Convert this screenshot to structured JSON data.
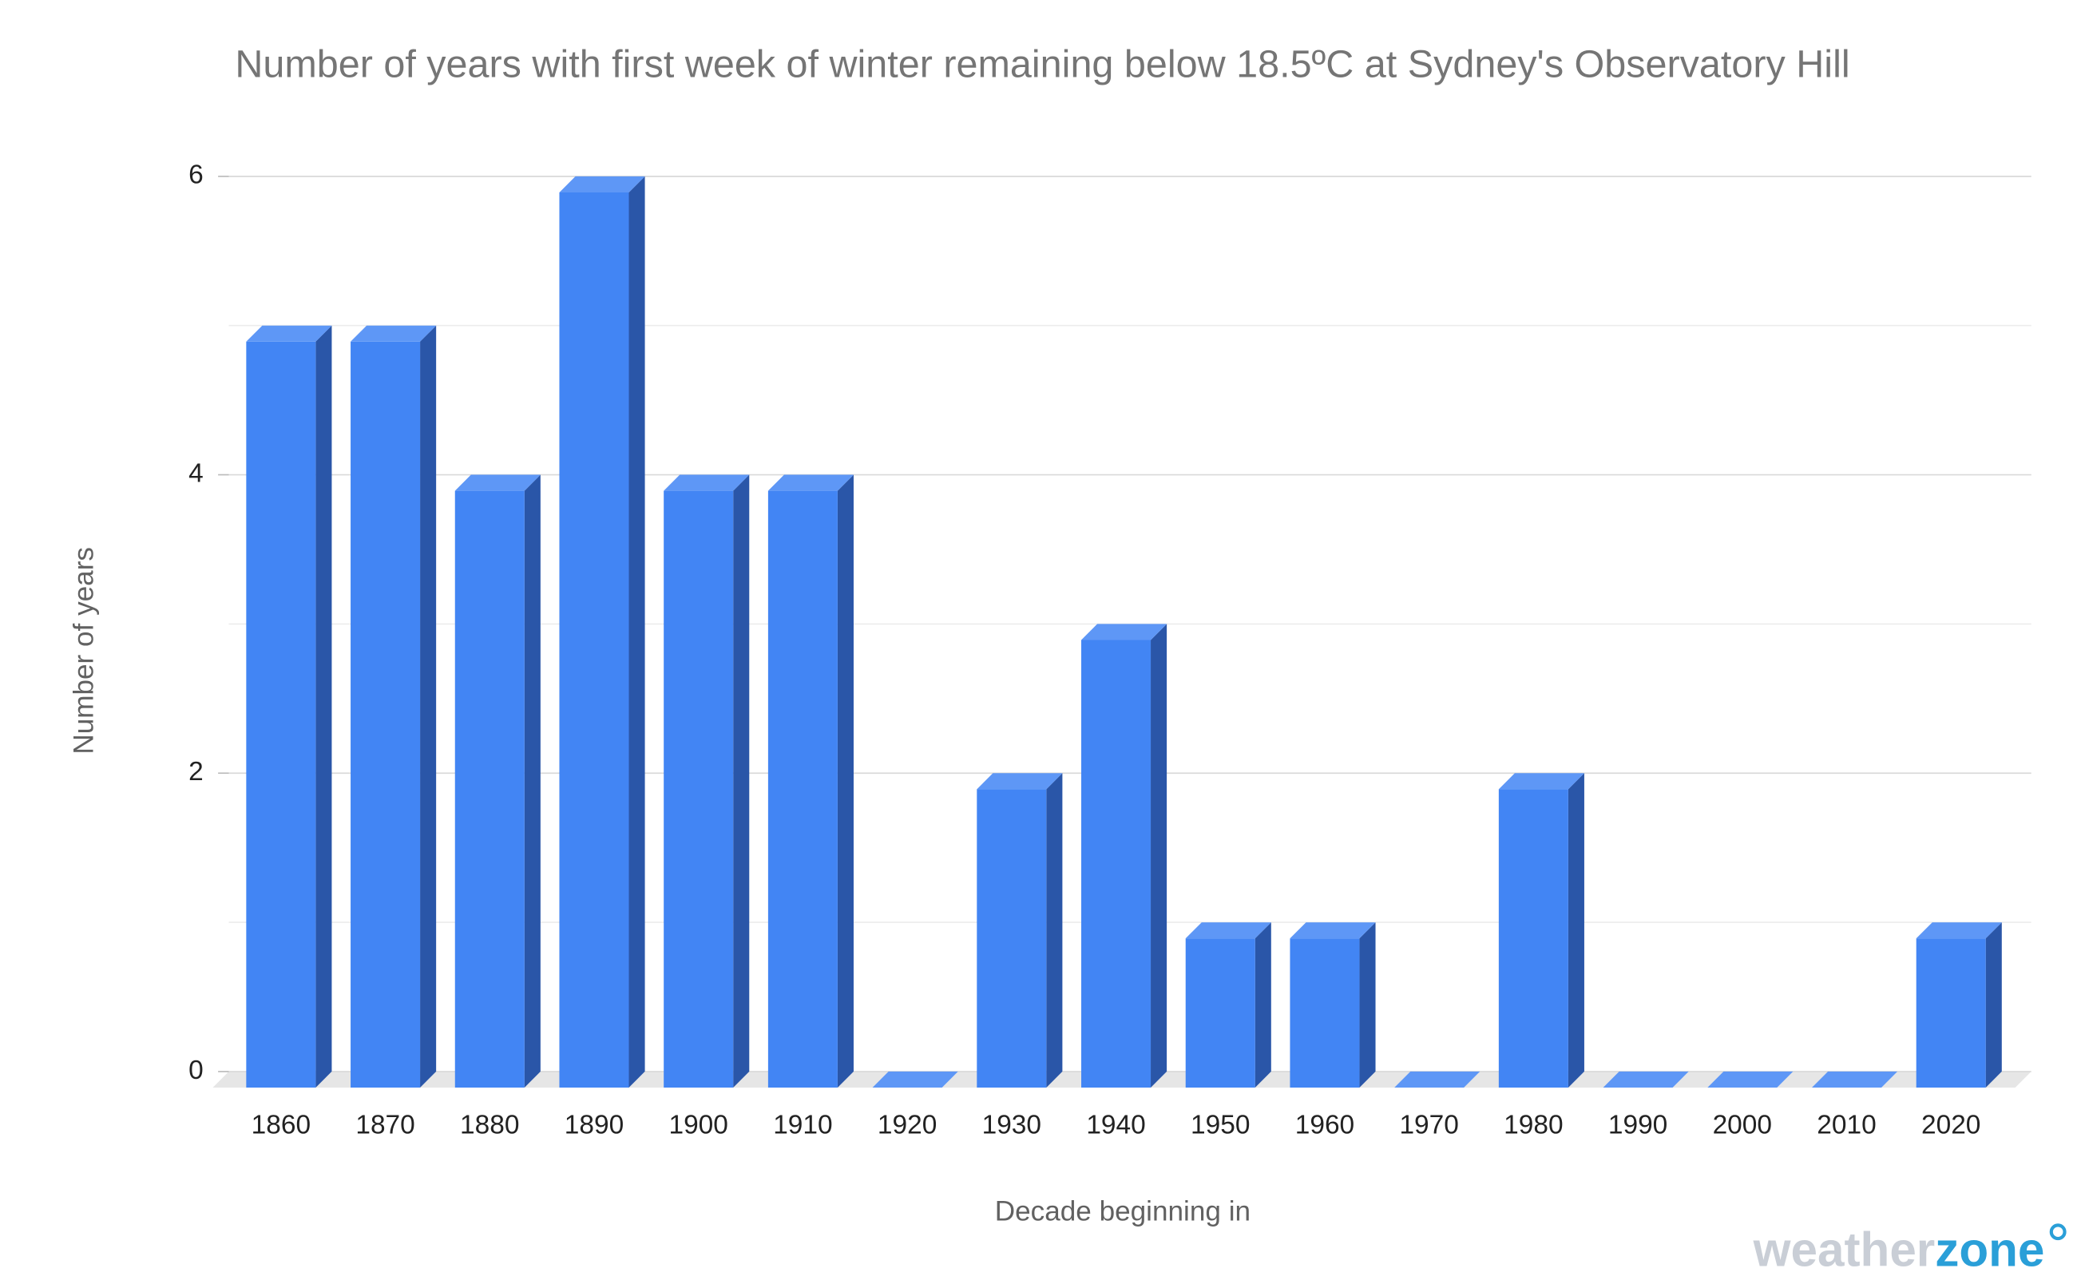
{
  "chart_data": {
    "type": "bar3d",
    "title": "Number of years with first week of winter remaining below 18.5ºC at Sydney's Observatory Hill",
    "x_label": "Decade beginning in",
    "y_label": "Number of years",
    "categories": [
      "1860",
      "1870",
      "1880",
      "1890",
      "1900",
      "1910",
      "1920",
      "1930",
      "1940",
      "1950",
      "1960",
      "1970",
      "1980",
      "1990",
      "2000",
      "2010",
      "2020"
    ],
    "values": [
      5,
      5,
      4,
      6,
      4,
      4,
      0,
      2,
      3,
      1,
      1,
      0,
      2,
      0,
      0,
      0,
      1
    ],
    "color": "#4285f4",
    "ylim": [
      0,
      6
    ],
    "yticks": [
      0,
      2,
      4,
      6
    ],
    "grid": true,
    "minor_grid": true,
    "watermark": [
      "weather",
      "zone"
    ]
  }
}
